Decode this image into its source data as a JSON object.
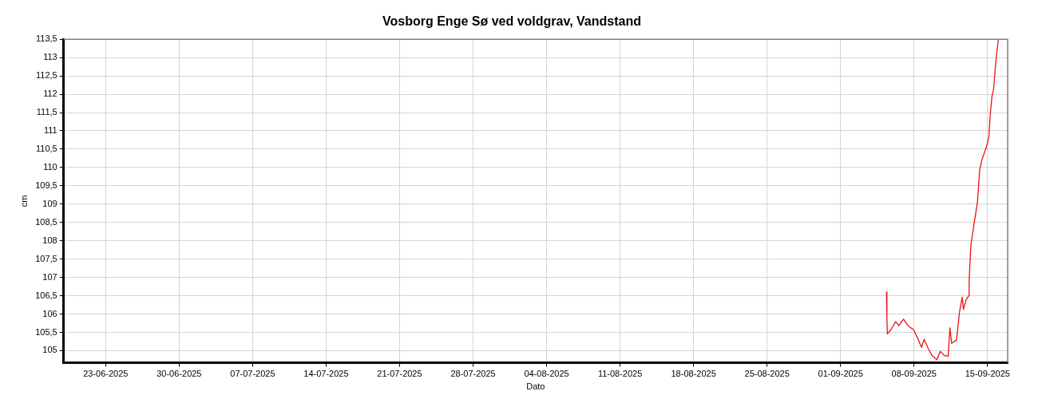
{
  "chart_data": {
    "type": "line",
    "title": "Vosborg Enge Sø ved voldgrav, Vandstand",
    "xlabel": "Dato",
    "ylabel": "cm",
    "x": [
      "2025-09-05T09:00",
      "2025-09-05T10:00",
      "2025-09-05T11:00",
      "2025-09-05T19:00",
      "2025-09-06T06:00",
      "2025-09-06T13:00",
      "2025-09-07T00:00",
      "2025-09-07T10:00",
      "2025-09-07T23:00",
      "2025-09-08T08:00",
      "2025-09-08T17:00",
      "2025-09-08T23:00",
      "2025-09-09T08:00",
      "2025-09-09T17:00",
      "2025-09-10T04:00",
      "2025-09-10T12:00",
      "2025-09-10T21:00",
      "2025-09-11T06:00",
      "2025-09-11T10:00",
      "2025-09-11T14:00",
      "2025-09-12T01:00",
      "2025-09-12T08:00",
      "2025-09-12T14:00",
      "2025-09-12T17:00",
      "2025-09-12T23:00",
      "2025-09-13T05:00",
      "2025-09-13T06:00",
      "2025-09-13T10:00",
      "2025-09-13T19:00",
      "2025-09-14T01:00",
      "2025-09-14T06:00",
      "2025-09-14T12:00",
      "2025-09-14T21:00",
      "2025-09-15T03:00",
      "2025-09-15T06:00",
      "2025-09-15T10:00",
      "2025-09-15T14:00",
      "2025-09-15T18:00",
      "2025-09-15T21:00",
      "2025-09-16T01:00"
    ],
    "series": [
      {
        "color": "#ee1111",
        "values": [
          106.6,
          105.9,
          105.46,
          105.57,
          105.79,
          105.68,
          105.86,
          105.68,
          105.57,
          105.35,
          105.09,
          105.31,
          105.07,
          104.87,
          104.76,
          104.98,
          104.87,
          104.85,
          105.62,
          105.2,
          105.29,
          106.06,
          106.46,
          106.13,
          106.39,
          106.5,
          106.94,
          107.89,
          108.6,
          109.06,
          109.94,
          110.25,
          110.54,
          110.83,
          111.42,
          111.93,
          112.15,
          112.75,
          113.12,
          113.5
        ]
      }
    ],
    "xlim": [
      "2025-06-19",
      "2025-09-16T22:00"
    ],
    "xticks": [
      {
        "value": "2025-06-23",
        "label": "23-06-2025"
      },
      {
        "value": "2025-06-30",
        "label": "30-06-2025"
      },
      {
        "value": "2025-07-07",
        "label": "07-07-2025"
      },
      {
        "value": "2025-07-14",
        "label": "14-07-2025"
      },
      {
        "value": "2025-07-21",
        "label": "21-07-2025"
      },
      {
        "value": "2025-07-28",
        "label": "28-07-2025"
      },
      {
        "value": "2025-08-04",
        "label": "04-08-2025"
      },
      {
        "value": "2025-08-11",
        "label": "11-08-2025"
      },
      {
        "value": "2025-08-18",
        "label": "18-08-2025"
      },
      {
        "value": "2025-08-25",
        "label": "25-08-2025"
      },
      {
        "value": "2025-09-01",
        "label": "01-09-2025"
      },
      {
        "value": "2025-09-08",
        "label": "08-09-2025"
      },
      {
        "value": "2025-09-15",
        "label": "15-09-2025"
      }
    ],
    "ylim": [
      104.67,
      113.5
    ],
    "yticks": [
      105,
      {
        "value": 105.5,
        "label": "105,5"
      },
      106,
      {
        "value": 106.5,
        "label": "106,5"
      },
      107,
      {
        "value": 107.5,
        "label": "107,5"
      },
      108,
      {
        "value": 108.5,
        "label": "108,5"
      },
      109,
      {
        "value": 109.5,
        "label": "109,5"
      },
      110,
      {
        "value": 110.5,
        "label": "110,5"
      },
      111,
      {
        "value": 111.5,
        "label": "111,5"
      },
      112,
      {
        "value": 112.5,
        "label": "112,5"
      },
      113,
      {
        "value": 113.5,
        "label": "113,5"
      }
    ],
    "grid": true,
    "legend": false,
    "marker": "none",
    "line_style": "solid"
  }
}
